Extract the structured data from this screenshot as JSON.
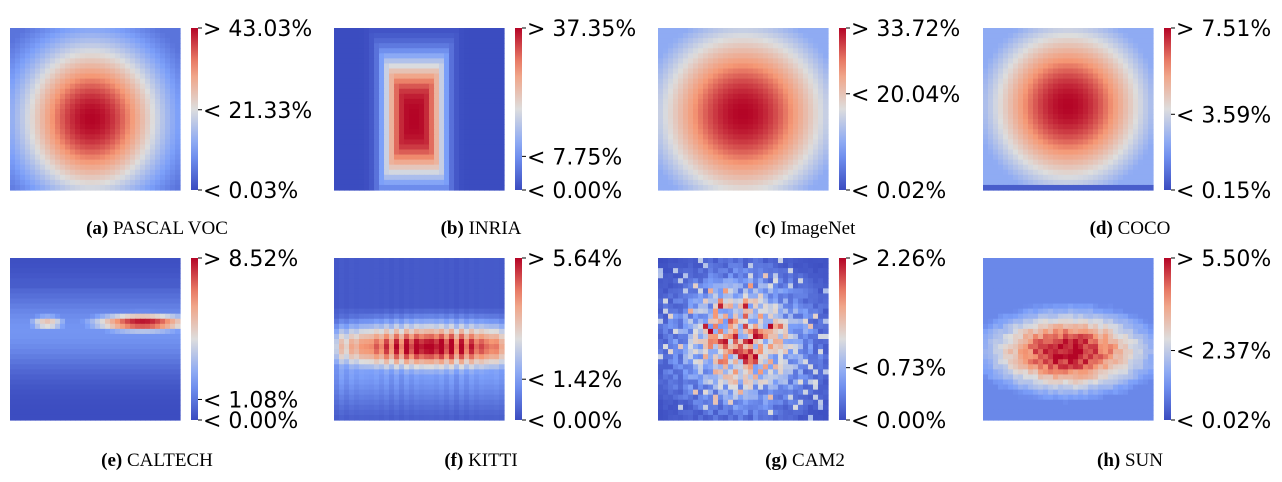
{
  "chart_data": [
    {
      "type": "heatmap",
      "panel": "a",
      "name": "PASCAL VOC",
      "colorbar_ticks": [
        "> 43.03%",
        "< 21.33%",
        "< 0.03%"
      ],
      "colorbar_values": [
        43.03,
        21.33,
        0.03
      ],
      "hotspot": {
        "cx": 0.48,
        "cy": 0.56,
        "rx": 0.55,
        "ry": 0.62,
        "shape": "ellipse",
        "peak": 1.0
      }
    },
    {
      "type": "heatmap",
      "panel": "b",
      "name": "INRIA",
      "colorbar_ticks": [
        "> 37.35%",
        "< 7.75%",
        "< 0.00%"
      ],
      "colorbar_values": [
        37.35,
        7.75,
        0.0
      ],
      "hotspot": {
        "cx": 0.47,
        "cy": 0.56,
        "rx": 0.22,
        "ry": 0.42,
        "shape": "rect",
        "peak": 1.0
      }
    },
    {
      "type": "heatmap",
      "panel": "c",
      "name": "ImageNet",
      "colorbar_ticks": [
        "> 33.72%",
        "< 20.04%",
        "< 0.02%"
      ],
      "colorbar_values": [
        33.72,
        20.04,
        0.02
      ],
      "hotspot": {
        "cx": 0.5,
        "cy": 0.53,
        "rx": 0.68,
        "ry": 0.72,
        "shape": "ellipse",
        "peak": 1.0
      }
    },
    {
      "type": "heatmap",
      "panel": "d",
      "name": "COCO",
      "colorbar_ticks": [
        "> 7.51%",
        "< 3.59%",
        "< 0.15%"
      ],
      "colorbar_values": [
        7.51,
        3.59,
        0.15
      ],
      "hotspot": {
        "cx": 0.5,
        "cy": 0.48,
        "rx": 0.62,
        "ry": 0.66,
        "shape": "ellipse",
        "peak": 1.0
      }
    },
    {
      "type": "heatmap",
      "panel": "e",
      "name": "CALTECH",
      "colorbar_ticks": [
        "> 8.52%",
        "< 1.08%",
        "< 0.00%"
      ],
      "colorbar_values": [
        8.52,
        1.08,
        0.0
      ],
      "hotspot": {
        "cx": 0.78,
        "cy": 0.4,
        "rx": 0.22,
        "ry": 0.07,
        "shape": "band",
        "peak": 1.0
      }
    },
    {
      "type": "heatmap",
      "panel": "f",
      "name": "KITTI",
      "colorbar_ticks": [
        "> 5.64%",
        "< 1.42%",
        "< 0.00%"
      ],
      "colorbar_values": [
        5.64,
        1.42,
        0.0
      ],
      "hotspot": {
        "cx": 0.58,
        "cy": 0.55,
        "rx": 0.55,
        "ry": 0.18,
        "shape": "band",
        "peak": 0.95
      }
    },
    {
      "type": "heatmap",
      "panel": "g",
      "name": "CAM2",
      "colorbar_ticks": [
        "> 2.26%",
        "< 0.73%",
        "< 0.00%"
      ],
      "colorbar_values": [
        2.26,
        0.73,
        0.0
      ],
      "hotspot": {
        "cx": 0.5,
        "cy": 0.52,
        "rx": 0.45,
        "ry": 0.45,
        "shape": "noisy",
        "peak": 0.85
      }
    },
    {
      "type": "heatmap",
      "panel": "h",
      "name": "SUN",
      "colorbar_ticks": [
        "> 5.50%",
        "< 2.37%",
        "< 0.02%"
      ],
      "colorbar_values": [
        5.5,
        2.37,
        0.02
      ],
      "hotspot": {
        "cx": 0.5,
        "cy": 0.58,
        "rx": 0.58,
        "ry": 0.3,
        "shape": "ellipse",
        "peak": 1.0
      }
    }
  ],
  "colormap": {
    "name": "coolwarm",
    "low": "#3b4cc0",
    "mid": "#dddddd",
    "high": "#b40426"
  }
}
